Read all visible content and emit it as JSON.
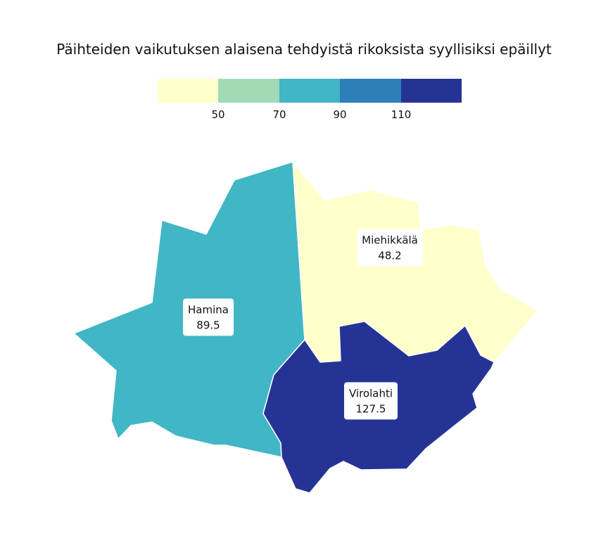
{
  "title": "Päihteiden vaikutuksen alaisena tehdyistä rikoksista syyllisiksi epäillyt",
  "legend": {
    "colors": [
      "#ffffcc",
      "#a1dab4",
      "#41b6c4",
      "#2c7fb8",
      "#253494"
    ],
    "ticks": [
      "50",
      "70",
      "90",
      "110"
    ]
  },
  "regions": [
    {
      "name": "Hamina",
      "value": "89.5",
      "color": "#41b6c4"
    },
    {
      "name": "Miehikkälä",
      "value": "48.2",
      "color": "#ffffcc"
    },
    {
      "name": "Virolahti",
      "value": "127.5",
      "color": "#253494"
    }
  ]
}
